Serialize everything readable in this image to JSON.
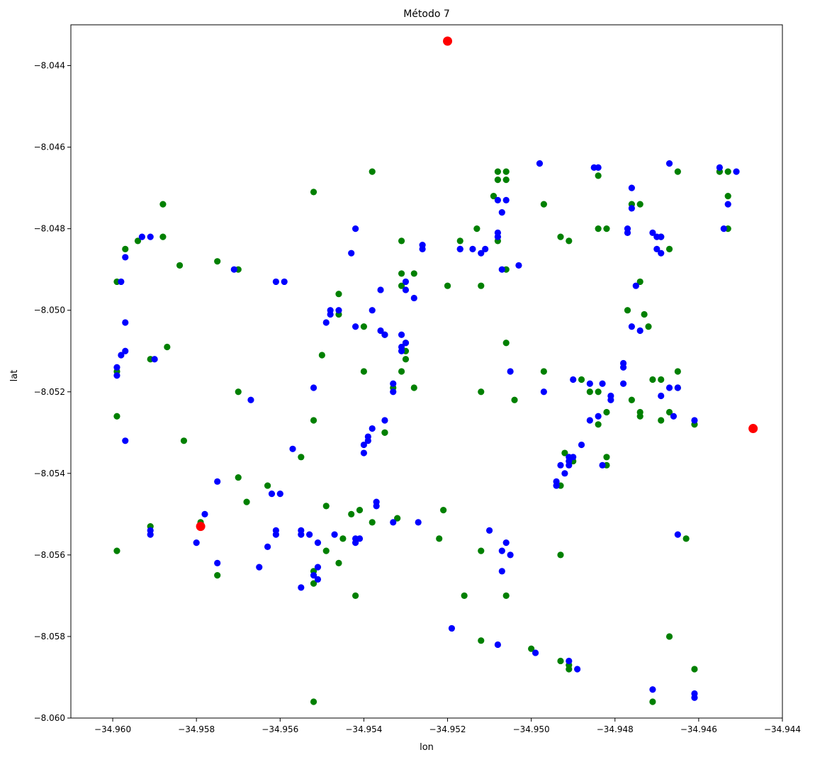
{
  "chart_data": {
    "type": "scatter",
    "title": "Método 7",
    "xlabel": "lon",
    "ylabel": "lat",
    "xlim": [
      -34.961,
      -34.944
    ],
    "ylim": [
      -8.06,
      -8.043
    ],
    "xticks": [
      -34.96,
      -34.958,
      -34.956,
      -34.954,
      -34.952,
      -34.95,
      -34.948,
      -34.946,
      -34.944
    ],
    "xtick_labels": [
      "−34.960",
      "−34.958",
      "−34.956",
      "−34.954",
      "−34.952",
      "−34.950",
      "−34.948",
      "−34.946",
      "−34.944"
    ],
    "yticks": [
      -8.044,
      -8.046,
      -8.048,
      -8.05,
      -8.052,
      -8.054,
      -8.056,
      -8.058,
      -8.06
    ],
    "ytick_labels": [
      "−8.044",
      "−8.046",
      "−8.048",
      "−8.050",
      "−8.052",
      "−8.054",
      "−8.056",
      "−8.058",
      "−8.060"
    ],
    "grid": false,
    "series": [
      {
        "color": "#008000",
        "size": "small",
        "points": [
          [
            -34.9597,
            -8.0485
          ],
          [
            -34.9594,
            -8.0483
          ],
          [
            -34.9588,
            -8.0474
          ],
          [
            -34.9588,
            -8.0482
          ],
          [
            -34.9584,
            -8.0489
          ],
          [
            -34.9575,
            -8.0488
          ],
          [
            -34.957,
            -8.049
          ],
          [
            -34.9599,
            -8.0493
          ],
          [
            -34.9587,
            -8.0509
          ],
          [
            -34.9599,
            -8.0515
          ],
          [
            -34.9591,
            -8.0512
          ],
          [
            -34.9599,
            -8.0526
          ],
          [
            -34.9583,
            -8.0532
          ],
          [
            -34.957,
            -8.052
          ],
          [
            -34.957,
            -8.0541
          ],
          [
            -34.9568,
            -8.0547
          ],
          [
            -34.9575,
            -8.0565
          ],
          [
            -34.9599,
            -8.0559
          ],
          [
            -34.9591,
            -8.0553
          ],
          [
            -34.9579,
            -8.0552
          ],
          [
            -34.9563,
            -8.0543
          ],
          [
            -34.9552,
            -8.0471
          ],
          [
            -34.955,
            -8.0511
          ],
          [
            -34.9552,
            -8.0527
          ],
          [
            -34.9555,
            -8.0536
          ],
          [
            -34.9546,
            -8.0496
          ],
          [
            -34.9546,
            -8.0501
          ],
          [
            -34.9538,
            -8.0466
          ],
          [
            -34.9531,
            -8.0483
          ],
          [
            -34.9531,
            -8.0491
          ],
          [
            -34.9528,
            -8.0491
          ],
          [
            -34.9531,
            -8.0494
          ],
          [
            -34.953,
            -8.0508
          ],
          [
            -34.953,
            -8.051
          ],
          [
            -34.953,
            -8.0512
          ],
          [
            -34.9531,
            -8.0515
          ],
          [
            -34.954,
            -8.0515
          ],
          [
            -34.9533,
            -8.0519
          ],
          [
            -34.9528,
            -8.0519
          ],
          [
            -34.9535,
            -8.053
          ],
          [
            -34.9535,
            -8.053
          ],
          [
            -34.9535,
            -8.0506
          ],
          [
            -34.954,
            -8.0504
          ],
          [
            -34.952,
            -8.0494
          ],
          [
            -34.9549,
            -8.0548
          ],
          [
            -34.9545,
            -8.0556
          ],
          [
            -34.9543,
            -8.055
          ],
          [
            -34.9538,
            -8.0552
          ],
          [
            -34.9541,
            -8.0549
          ],
          [
            -34.9549,
            -8.0559
          ],
          [
            -34.9552,
            -8.0564
          ],
          [
            -34.9552,
            -8.0567
          ],
          [
            -34.9546,
            -8.0562
          ],
          [
            -34.9542,
            -8.057
          ],
          [
            -34.9532,
            -8.0551
          ],
          [
            -34.9521,
            -8.0549
          ],
          [
            -34.9522,
            -8.0556
          ],
          [
            -34.9552,
            -8.0596
          ],
          [
            -34.9513,
            -8.048
          ],
          [
            -34.9517,
            -8.0483
          ],
          [
            -34.9508,
            -8.0466
          ],
          [
            -34.9506,
            -8.0466
          ],
          [
            -34.9508,
            -8.0468
          ],
          [
            -34.9506,
            -8.0468
          ],
          [
            -34.9509,
            -8.0472
          ],
          [
            -34.9508,
            -8.0483
          ],
          [
            -34.9512,
            -8.0494
          ],
          [
            -34.9506,
            -8.049
          ],
          [
            -34.9512,
            -8.052
          ],
          [
            -34.9506,
            -8.0508
          ],
          [
            -34.9504,
            -8.0522
          ],
          [
            -34.9512,
            -8.0559
          ],
          [
            -34.9516,
            -8.057
          ],
          [
            -34.9506,
            -8.057
          ],
          [
            -34.9512,
            -8.0581
          ],
          [
            -34.95,
            -8.0583
          ],
          [
            -34.9497,
            -8.0474
          ],
          [
            -34.9493,
            -8.0482
          ],
          [
            -34.9491,
            -8.0483
          ],
          [
            -34.9484,
            -8.0467
          ],
          [
            -34.9484,
            -8.048
          ],
          [
            -34.9482,
            -8.048
          ],
          [
            -34.9497,
            -8.0515
          ],
          [
            -34.9488,
            -8.0517
          ],
          [
            -34.9484,
            -8.052
          ],
          [
            -34.9486,
            -8.052
          ],
          [
            -34.9484,
            -8.0528
          ],
          [
            -34.9482,
            -8.0525
          ],
          [
            -34.9492,
            -8.0535
          ],
          [
            -34.949,
            -8.0537
          ],
          [
            -34.9482,
            -8.0536
          ],
          [
            -34.9482,
            -8.0538
          ],
          [
            -34.9493,
            -8.0543
          ],
          [
            -34.9493,
            -8.056
          ],
          [
            -34.9493,
            -8.0586
          ],
          [
            -34.9491,
            -8.0587
          ],
          [
            -34.9491,
            -8.0588
          ],
          [
            -34.9476,
            -8.0474
          ],
          [
            -34.9474,
            -8.0474
          ],
          [
            -34.9477,
            -8.05
          ],
          [
            -34.9474,
            -8.0493
          ],
          [
            -34.9473,
            -8.0501
          ],
          [
            -34.9472,
            -8.0504
          ],
          [
            -34.9476,
            -8.0522
          ],
          [
            -34.9474,
            -8.0525
          ],
          [
            -34.9471,
            -8.0517
          ],
          [
            -34.9469,
            -8.0517
          ],
          [
            -34.9467,
            -8.0485
          ],
          [
            -34.9469,
            -8.0482
          ],
          [
            -34.9465,
            -8.0466
          ],
          [
            -34.9455,
            -8.0466
          ],
          [
            -34.9453,
            -8.0466
          ],
          [
            -34.9453,
            -8.0472
          ],
          [
            -34.9453,
            -8.048
          ],
          [
            -34.9465,
            -8.0515
          ],
          [
            -34.9465,
            -8.0519
          ],
          [
            -34.9467,
            -8.0525
          ],
          [
            -34.9469,
            -8.0527
          ],
          [
            -34.9461,
            -8.0528
          ],
          [
            -34.9463,
            -8.0556
          ],
          [
            -34.9467,
            -8.058
          ],
          [
            -34.9471,
            -8.0596
          ],
          [
            -34.9461,
            -8.0588
          ],
          [
            -34.9474,
            -8.0526
          ]
        ]
      },
      {
        "color": "#0000ff",
        "size": "small",
        "points": [
          [
            -34.9597,
            -8.0487
          ],
          [
            -34.9593,
            -8.0482
          ],
          [
            -34.9591,
            -8.0482
          ],
          [
            -34.9571,
            -8.049
          ],
          [
            -34.9598,
            -8.0493
          ],
          [
            -34.9597,
            -8.0503
          ],
          [
            -34.9597,
            -8.051
          ],
          [
            -34.9598,
            -8.0511
          ],
          [
            -34.9599,
            -8.0514
          ],
          [
            -34.9599,
            -8.0516
          ],
          [
            -34.959,
            -8.0512
          ],
          [
            -34.9597,
            -8.0532
          ],
          [
            -34.9567,
            -8.0522
          ],
          [
            -34.9575,
            -8.0542
          ],
          [
            -34.958,
            -8.0557
          ],
          [
            -34.9578,
            -8.055
          ],
          [
            -34.9575,
            -8.0562
          ],
          [
            -34.9591,
            -8.0554
          ],
          [
            -34.9591,
            -8.0555
          ],
          [
            -34.9561,
            -8.0493
          ],
          [
            -34.9559,
            -8.0493
          ],
          [
            -34.9562,
            -8.0545
          ],
          [
            -34.956,
            -8.0545
          ],
          [
            -34.9557,
            -8.0534
          ],
          [
            -34.9565,
            -8.0563
          ],
          [
            -34.9563,
            -8.0558
          ],
          [
            -34.9561,
            -8.0554
          ],
          [
            -34.9561,
            -8.0555
          ],
          [
            -34.9555,
            -8.0554
          ],
          [
            -34.9555,
            -8.0555
          ],
          [
            -34.9553,
            -8.0555
          ],
          [
            -34.9555,
            -8.0568
          ],
          [
            -34.9552,
            -8.0519
          ],
          [
            -34.9549,
            -8.0503
          ],
          [
            -34.9548,
            -8.05
          ],
          [
            -34.9548,
            -8.0501
          ],
          [
            -34.9546,
            -8.05
          ],
          [
            -34.9543,
            -8.0486
          ],
          [
            -34.9542,
            -8.048
          ],
          [
            -34.9542,
            -8.0504
          ],
          [
            -34.9538,
            -8.05
          ],
          [
            -34.9536,
            -8.0495
          ],
          [
            -34.9536,
            -8.0505
          ],
          [
            -34.9535,
            -8.0506
          ],
          [
            -34.9531,
            -8.0506
          ],
          [
            -34.953,
            -8.0508
          ],
          [
            -34.9531,
            -8.051
          ],
          [
            -34.9531,
            -8.0509
          ],
          [
            -34.9533,
            -8.0518
          ],
          [
            -34.9533,
            -8.052
          ],
          [
            -34.953,
            -8.0493
          ],
          [
            -34.953,
            -8.0495
          ],
          [
            -34.9528,
            -8.0497
          ],
          [
            -34.9526,
            -8.0485
          ],
          [
            -34.9526,
            -8.0484
          ],
          [
            -34.9539,
            -8.0531
          ],
          [
            -34.954,
            -8.0533
          ],
          [
            -34.9539,
            -8.0532
          ],
          [
            -34.954,
            -8.0535
          ],
          [
            -34.9537,
            -8.0548
          ],
          [
            -34.9537,
            -8.0547
          ],
          [
            -34.9535,
            -8.0527
          ],
          [
            -34.9538,
            -8.0529
          ],
          [
            -34.9533,
            -8.0552
          ],
          [
            -34.9527,
            -8.0552
          ],
          [
            -34.9541,
            -8.0556
          ],
          [
            -34.9542,
            -8.0556
          ],
          [
            -34.9542,
            -8.0557
          ],
          [
            -34.9547,
            -8.0555
          ],
          [
            -34.9551,
            -8.0557
          ],
          [
            -34.9551,
            -8.0566
          ],
          [
            -34.9552,
            -8.0565
          ],
          [
            -34.9551,
            -8.0563
          ],
          [
            -34.9519,
            -8.0578
          ],
          [
            -34.9517,
            -8.0485
          ],
          [
            -34.9517,
            -8.0485
          ],
          [
            -34.9514,
            -8.0485
          ],
          [
            -34.9512,
            -8.0486
          ],
          [
            -34.9511,
            -8.0485
          ],
          [
            -34.9508,
            -8.0481
          ],
          [
            -34.9508,
            -8.0482
          ],
          [
            -34.9508,
            -8.0473
          ],
          [
            -34.9506,
            -8.0473
          ],
          [
            -34.9507,
            -8.0476
          ],
          [
            -34.9507,
            -8.049
          ],
          [
            -34.9503,
            -8.0489
          ],
          [
            -34.9498,
            -8.0464
          ],
          [
            -34.9505,
            -8.0515
          ],
          [
            -34.9497,
            -8.052
          ],
          [
            -34.951,
            -8.0554
          ],
          [
            -34.9507,
            -8.0559
          ],
          [
            -34.9506,
            -8.0557
          ],
          [
            -34.9505,
            -8.056
          ],
          [
            -34.9507,
            -8.0564
          ],
          [
            -34.9508,
            -8.0582
          ],
          [
            -34.9499,
            -8.0584
          ],
          [
            -34.9489,
            -8.0588
          ],
          [
            -34.9491,
            -8.0586
          ],
          [
            -34.9485,
            -8.0465
          ],
          [
            -34.9484,
            -8.0465
          ],
          [
            -34.949,
            -8.0517
          ],
          [
            -34.9486,
            -8.0518
          ],
          [
            -34.9483,
            -8.0518
          ],
          [
            -34.9481,
            -8.0521
          ],
          [
            -34.9481,
            -8.0522
          ],
          [
            -34.9484,
            -8.0526
          ],
          [
            -34.9486,
            -8.0527
          ],
          [
            -34.9488,
            -8.0533
          ],
          [
            -34.9491,
            -8.0536
          ],
          [
            -34.949,
            -8.0536
          ],
          [
            -34.9491,
            -8.0537
          ],
          [
            -34.9493,
            -8.0538
          ],
          [
            -34.9492,
            -8.054
          ],
          [
            -34.9494,
            -8.0542
          ],
          [
            -34.9494,
            -8.0543
          ],
          [
            -34.9491,
            -8.0538
          ],
          [
            -34.9483,
            -8.0538
          ],
          [
            -34.9476,
            -8.047
          ],
          [
            -34.9476,
            -8.0475
          ],
          [
            -34.9477,
            -8.0481
          ],
          [
            -34.9477,
            -8.048
          ],
          [
            -34.9478,
            -8.0513
          ],
          [
            -34.9478,
            -8.0514
          ],
          [
            -34.9478,
            -8.0518
          ],
          [
            -34.9475,
            -8.0494
          ],
          [
            -34.9476,
            -8.0504
          ],
          [
            -34.9474,
            -8.0505
          ],
          [
            -34.9471,
            -8.0481
          ],
          [
            -34.947,
            -8.0482
          ],
          [
            -34.9469,
            -8.0482
          ],
          [
            -34.9469,
            -8.0486
          ],
          [
            -34.947,
            -8.0485
          ],
          [
            -34.9469,
            -8.0521
          ],
          [
            -34.9467,
            -8.0519
          ],
          [
            -34.9465,
            -8.0519
          ],
          [
            -34.9466,
            -8.0526
          ],
          [
            -34.9467,
            -8.0464
          ],
          [
            -34.9455,
            -8.0465
          ],
          [
            -34.9451,
            -8.0466
          ],
          [
            -34.9453,
            -8.0474
          ],
          [
            -34.9454,
            -8.048
          ],
          [
            -34.9461,
            -8.0527
          ],
          [
            -34.9465,
            -8.0555
          ],
          [
            -34.9471,
            -8.0593
          ],
          [
            -34.9461,
            -8.0594
          ],
          [
            -34.9461,
            -8.0595
          ]
        ]
      },
      {
        "color": "#ff0000",
        "size": "large",
        "points": [
          [
            -34.952,
            -8.0434
          ],
          [
            -34.9579,
            -8.0553
          ],
          [
            -34.9447,
            -8.0529
          ]
        ]
      }
    ]
  }
}
